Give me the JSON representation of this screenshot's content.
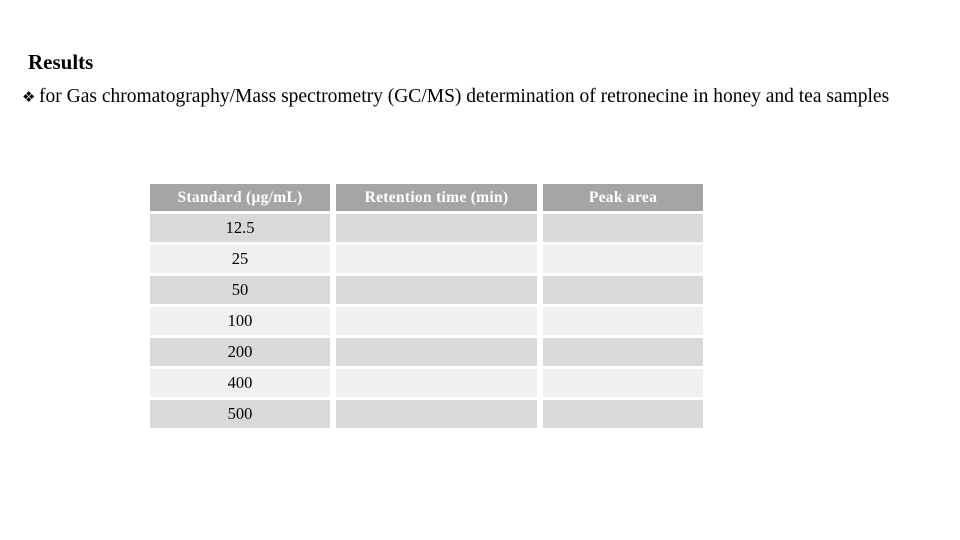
{
  "slide": {
    "title": "Results",
    "bullet": {
      "marker": "❖",
      "text": "for Gas chromatography/Mass spectrometry (GC/MS) determination of retronecine in honey and tea samples"
    }
  },
  "table": {
    "headers": {
      "standard": "Standard (μg/mL)",
      "retention": "Retention time (min)",
      "peak": "Peak area"
    },
    "rows": [
      {
        "standard": "12.5",
        "retention": "",
        "peak": ""
      },
      {
        "standard": "25",
        "retention": "",
        "peak": ""
      },
      {
        "standard": "50",
        "retention": "",
        "peak": ""
      },
      {
        "standard": "100",
        "retention": "",
        "peak": ""
      },
      {
        "standard": "200",
        "retention": "",
        "peak": ""
      },
      {
        "standard": "400",
        "retention": "",
        "peak": ""
      },
      {
        "standard": "500",
        "retention": "",
        "peak": ""
      }
    ]
  },
  "colors": {
    "header_bg": "#a5a5a5",
    "band_dark": "#d9d9d9",
    "band_light": "#f0f0f0",
    "text": "#000000",
    "header_text": "#ffffff"
  }
}
